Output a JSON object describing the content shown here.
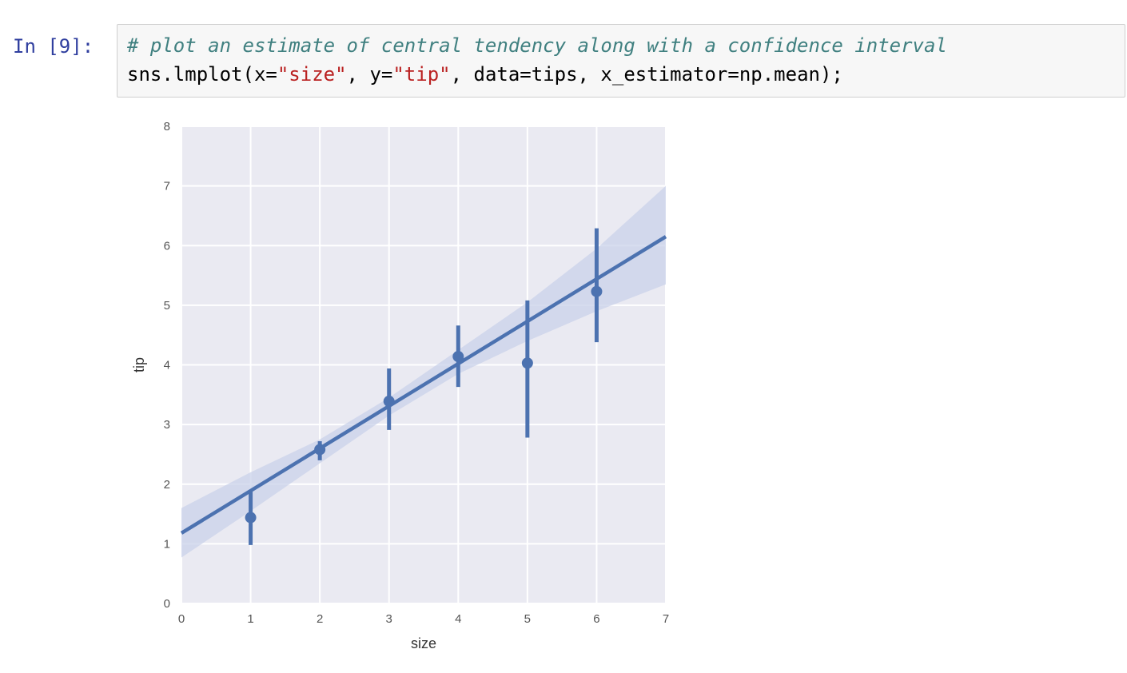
{
  "cell": {
    "prompt": "In [9]:",
    "code_comment": "# plot an estimate of central tendency along with a confidence interval",
    "code_line2": {
      "prefix": "sns.lmplot(x=",
      "x_str": "\"size\"",
      "mid": ", y=",
      "y_str": "\"tip\"",
      "suffix": ", data=tips, x_estimator=np.mean);"
    }
  },
  "colors": {
    "plot_bg": "#eaeaf2",
    "grid": "#ffffff",
    "line": "#4c72b0",
    "band": "#c9d1e9",
    "tick_text": "#555555"
  },
  "chart_data": {
    "type": "scatter",
    "xlabel": "size",
    "ylabel": "tip",
    "xlim": [
      0,
      7
    ],
    "ylim": [
      0,
      8
    ],
    "xticks": [
      0,
      1,
      2,
      3,
      4,
      5,
      6,
      7
    ],
    "yticks": [
      0,
      1,
      2,
      3,
      4,
      5,
      6,
      7,
      8
    ],
    "grid": true,
    "points": [
      {
        "x": 1,
        "y": 1.44,
        "ci_low": 0.98,
        "ci_high": 1.9
      },
      {
        "x": 2,
        "y": 2.58,
        "ci_low": 2.4,
        "ci_high": 2.72
      },
      {
        "x": 3,
        "y": 3.39,
        "ci_low": 2.91,
        "ci_high": 3.94
      },
      {
        "x": 4,
        "y": 4.14,
        "ci_low": 3.63,
        "ci_high": 4.66
      },
      {
        "x": 5,
        "y": 4.03,
        "ci_low": 2.78,
        "ci_high": 5.08
      },
      {
        "x": 6,
        "y": 5.23,
        "ci_low": 4.38,
        "ci_high": 6.29
      }
    ],
    "regression": {
      "intercept": 1.18,
      "slope": 0.71
    },
    "confidence_band": [
      {
        "x": 0,
        "low": 0.77,
        "high": 1.6
      },
      {
        "x": 1,
        "low": 1.55,
        "high": 2.2
      },
      {
        "x": 2,
        "low": 2.35,
        "high": 2.75
      },
      {
        "x": 3,
        "low": 3.15,
        "high": 3.45
      },
      {
        "x": 4,
        "low": 3.85,
        "high": 4.25
      },
      {
        "x": 5,
        "low": 4.4,
        "high": 5.05
      },
      {
        "x": 6,
        "low": 4.9,
        "high": 5.95
      },
      {
        "x": 7,
        "low": 5.35,
        "high": 7.0
      }
    ]
  }
}
